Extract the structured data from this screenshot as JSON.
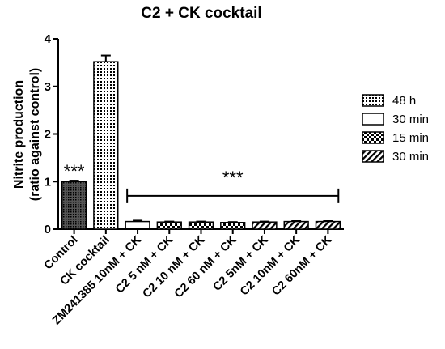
{
  "chart_data": {
    "type": "bar",
    "title": "C2 + CK cocktail",
    "ylabel_line1": "Nitrite production",
    "ylabel_line2": "(ratio against control)",
    "xlabel": "",
    "ylim": [
      0,
      4
    ],
    "yticks": [
      "0",
      "1",
      "2",
      "3",
      "4"
    ],
    "categories": [
      "Control",
      "CK cocktail",
      "ZM241385 10nM + CK",
      "C2 5 nM + CK",
      "C2 10 nM + CK",
      "C2 60 nM + CK",
      "C2 5nM + CK",
      "C2 10nM + CK",
      "C2 60nM + CK"
    ],
    "values": [
      1.0,
      3.52,
      0.16,
      0.15,
      0.15,
      0.14,
      0.15,
      0.16,
      0.16
    ],
    "errors": [
      0.02,
      0.13,
      0.02,
      0.01,
      0.01,
      0.01,
      0.01,
      0.01,
      0.01
    ],
    "bar_patterns": [
      "dense-check",
      "dots",
      "solid",
      "checker",
      "checker",
      "checker",
      "hatch",
      "hatch",
      "hatch"
    ],
    "legend": [
      {
        "label": "48 h",
        "pattern": "dots"
      },
      {
        "label": "30 min",
        "pattern": "solid"
      },
      {
        "label": "15 min",
        "pattern": "checker"
      },
      {
        "label": "30 min",
        "pattern": "hatch"
      }
    ],
    "annotations": [
      {
        "text": "***",
        "category_index": 0
      },
      {
        "text": "***",
        "bracket_from": 2,
        "bracket_to": 8,
        "y": 0.7
      }
    ],
    "grid": false,
    "legend_position": "right"
  }
}
